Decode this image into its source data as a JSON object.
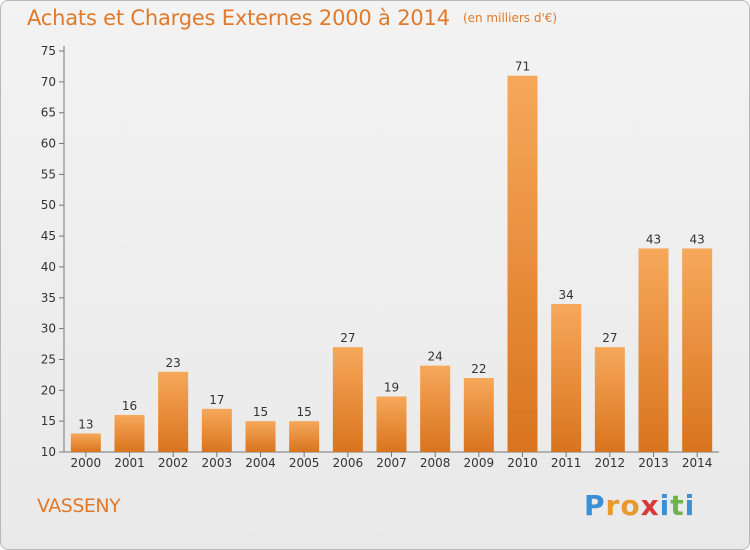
{
  "header": {
    "title": "Achats et Charges Externes 2000 à 2014",
    "unit": "(en milliers d'€)"
  },
  "footer": {
    "commune": "VASSENY",
    "logo_letters": [
      "P",
      "r",
      "o",
      "x",
      "i",
      "t",
      "i"
    ],
    "logo_colors": [
      "#3b8fd4",
      "#e89a2f",
      "#e89a2f",
      "#d83a3a",
      "#3b8fd4",
      "#6bb34a",
      "#3b8fd4"
    ]
  },
  "colors": {
    "bar_light": "#f6a85a",
    "bar_dark": "#d9741e",
    "title": "#e07a2a"
  },
  "chart_data": {
    "type": "bar",
    "categories": [
      "2000",
      "2001",
      "2002",
      "2003",
      "2004",
      "2005",
      "2006",
      "2007",
      "2008",
      "2009",
      "2010",
      "2011",
      "2012",
      "2013",
      "2014"
    ],
    "values": [
      13,
      16,
      23,
      17,
      15,
      15,
      27,
      19,
      24,
      22,
      71,
      34,
      27,
      43,
      43
    ],
    "ylim": [
      10,
      75
    ],
    "yticks": [
      10,
      15,
      20,
      25,
      30,
      35,
      40,
      45,
      50,
      55,
      60,
      65,
      70,
      75
    ],
    "grid": false,
    "data_labels": true
  }
}
